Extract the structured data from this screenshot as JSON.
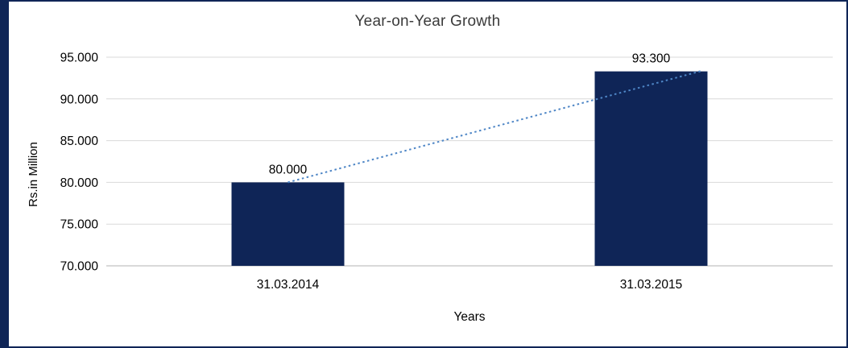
{
  "chart_data": {
    "type": "bar",
    "title": "Year-on-Year Growth",
    "xlabel": "Years",
    "ylabel": "Rs.in Million",
    "categories": [
      "31.03.2014",
      "31.03.2015"
    ],
    "values": [
      80.0,
      93.3
    ],
    "value_labels": [
      "80.000",
      "93.300"
    ],
    "ylim": [
      70,
      95
    ],
    "y_ticks": [
      70,
      75,
      80,
      85,
      90,
      95
    ],
    "y_tick_labels": [
      "70.000",
      "75.000",
      "80.000",
      "85.000",
      "90.000",
      "95.000"
    ],
    "grid": true,
    "legend": "none",
    "bar_color": "#0f2557",
    "frame_color": "#0f2557",
    "gridline_color": "#d9d9d9",
    "axis_line_color": "#b3b3b3",
    "trendline": {
      "type": "linear",
      "style": "dotted",
      "color": "#4e86c6"
    }
  }
}
